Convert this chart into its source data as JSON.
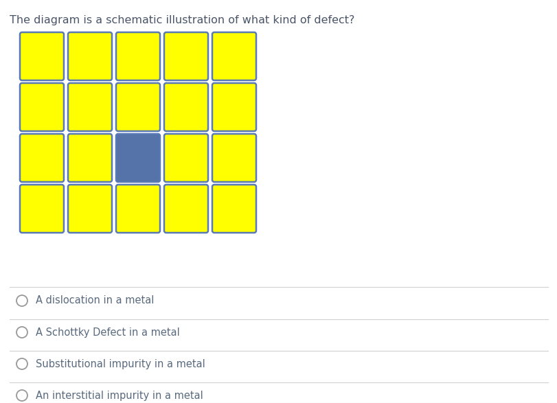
{
  "title": "The diagram is a schematic illustration of what kind of defect?",
  "title_color": "#4a5568",
  "title_fontsize": 11.5,
  "grid_rows": 4,
  "grid_cols": 5,
  "yellow_color": "#ffff00",
  "blue_color": "#5573a8",
  "border_color": "#5a7ab5",
  "special_cell_row": 2,
  "special_cell_col": 2,
  "options": [
    [
      "A dislocation in a metal",
      "A dislocation ",
      "in",
      " a metal"
    ],
    [
      "A Schottky Defect in a metal",
      "A Schottky Defect ",
      "in",
      " a metal"
    ],
    [
      "Substitutional impurity in a metal",
      "Substitutional impurity ",
      "in",
      " a metal"
    ],
    [
      "An interstitial impurity in a metal",
      "An interstitial impurity ",
      "in",
      " a metal"
    ]
  ],
  "option_color_normal": "#5a6a7e",
  "option_color_highlight": "#5a6a7e",
  "option_fontsize": 10.5,
  "radio_color": "#999999",
  "separator_color": "#d0d0d0",
  "background_color": "#ffffff"
}
